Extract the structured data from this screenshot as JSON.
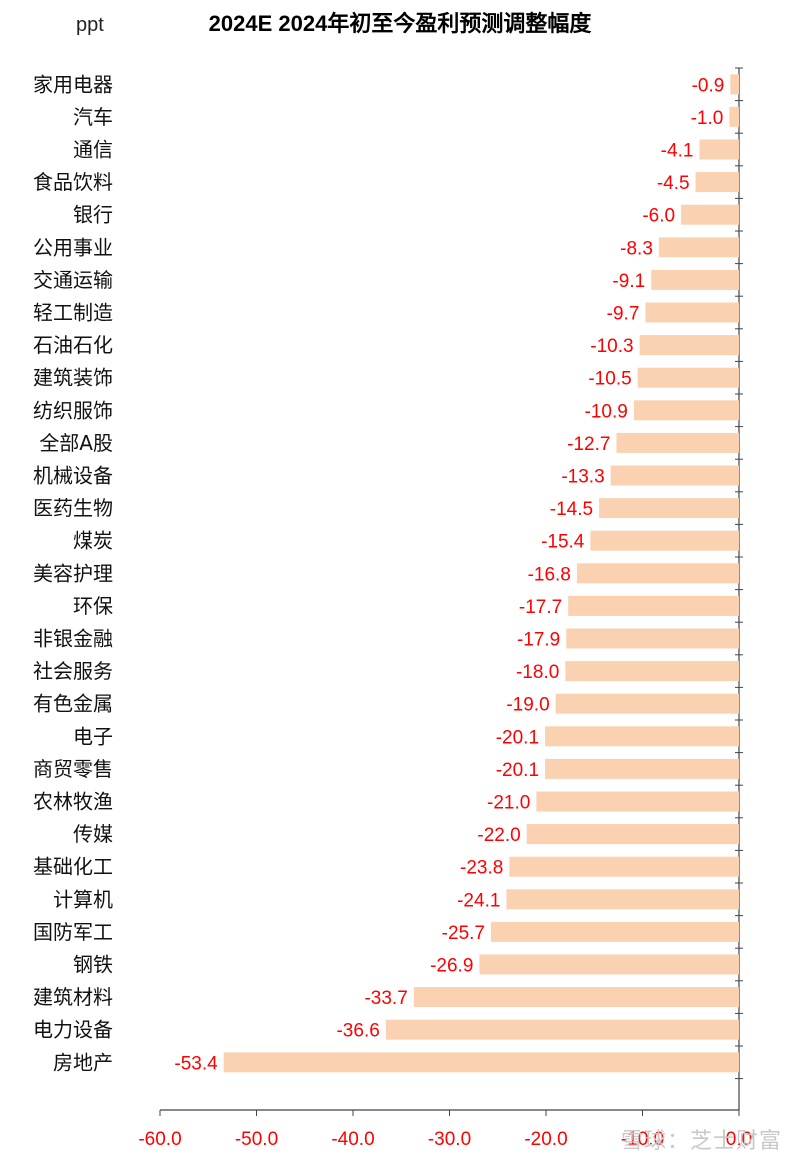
{
  "chart_data": {
    "type": "bar",
    "orientation": "horizontal",
    "title": "2024E 2024年初至今盈利预测调整幅度",
    "unit": "ppt",
    "xlim": [
      -60,
      0
    ],
    "xticks": [
      "-60.0",
      "-50.0",
      "-40.0",
      "-30.0",
      "-20.0",
      "-10.0",
      "0.0"
    ],
    "bar_color": "#fad2b1",
    "label_color": "#ff0000",
    "categories": [
      "家用电器",
      "汽车",
      "通信",
      "食品饮料",
      "银行",
      "公用事业",
      "交通运输",
      "轻工制造",
      "石油石化",
      "建筑装饰",
      "纺织服饰",
      "全部A股",
      "机械设备",
      "医药生物",
      "煤炭",
      "美容护理",
      "环保",
      "非银金融",
      "社会服务",
      "有色金属",
      "电子",
      "商贸零售",
      "农林牧渔",
      "传媒",
      "基础化工",
      "计算机",
      "国防军工",
      "钢铁",
      "建筑材料",
      "电力设备",
      "房地产"
    ],
    "values": [
      -0.9,
      -1.0,
      -4.1,
      -4.5,
      -6.0,
      -8.3,
      -9.1,
      -9.7,
      -10.3,
      -10.5,
      -10.9,
      -12.7,
      -13.3,
      -14.5,
      -15.4,
      -16.8,
      -17.7,
      -17.9,
      -18.0,
      -19.0,
      -20.1,
      -20.1,
      -21.0,
      -22.0,
      -23.8,
      -24.1,
      -25.7,
      -26.9,
      -33.7,
      -36.6,
      -53.4
    ],
    "value_labels": [
      "-0.9",
      "-1.0",
      "-4.1",
      "-4.5",
      "-6.0",
      "-8.3",
      "-9.1",
      "-9.7",
      "-10.3",
      "-10.5",
      "-10.9",
      "-12.7",
      "-13.3",
      "-14.5",
      "-15.4",
      "-16.8",
      "-17.7",
      "-17.9",
      "-18.0",
      "-19.0",
      "-20.1",
      "-20.1",
      "-21.0",
      "-22.0",
      "-23.8",
      "-24.1",
      "-25.7",
      "-26.9",
      "-33.7",
      "-36.6",
      "-53.4"
    ]
  },
  "watermark": "雪球：芝士财富"
}
